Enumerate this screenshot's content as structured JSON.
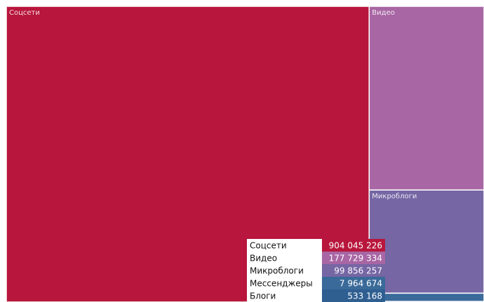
{
  "chart_data": {
    "type": "treemap",
    "categories": [
      "Соцсети",
      "Видео",
      "Микроблоги",
      "Мессенджеры",
      "Блоги"
    ],
    "values": [
      904045226,
      177729334,
      99856257,
      7964674,
      533168
    ],
    "value_labels": [
      "904 045 226",
      "177 729 334",
      "99 856 257",
      "7 964 674",
      "533 168"
    ],
    "colors": [
      "#b8163c",
      "#a866a4",
      "#7666a4",
      "#3a6a99",
      "#2f5f91"
    ]
  }
}
